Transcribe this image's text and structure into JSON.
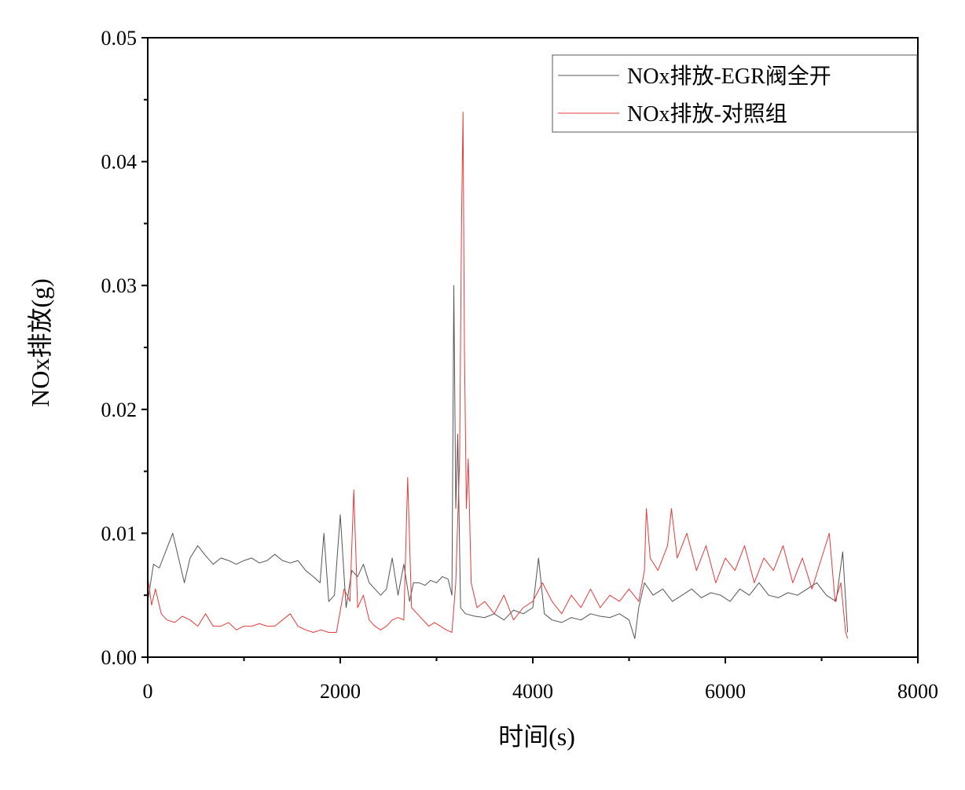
{
  "chart_data": {
    "type": "line",
    "title": "",
    "xlabel": "时间(s)",
    "ylabel": "NOx排放(g)",
    "xlim": [
      0,
      8000
    ],
    "ylim": [
      0,
      0.05
    ],
    "x_ticks": [
      "0",
      "2000",
      "4000",
      "6000",
      "8000"
    ],
    "y_ticks": [
      "0.00",
      "0.01",
      "0.02",
      "0.03",
      "0.04",
      "0.05"
    ],
    "grid": false,
    "legend_position": "top-right",
    "series": [
      {
        "name": "NOx排放-EGR阀全开",
        "color": "#555555",
        "points": [
          [
            0,
            0.0045
          ],
          [
            60,
            0.0075
          ],
          [
            120,
            0.0072
          ],
          [
            200,
            0.0088
          ],
          [
            260,
            0.01
          ],
          [
            320,
            0.008
          ],
          [
            380,
            0.006
          ],
          [
            440,
            0.008
          ],
          [
            520,
            0.009
          ],
          [
            600,
            0.0082
          ],
          [
            680,
            0.0075
          ],
          [
            760,
            0.008
          ],
          [
            840,
            0.0078
          ],
          [
            920,
            0.0075
          ],
          [
            1000,
            0.0078
          ],
          [
            1080,
            0.008
          ],
          [
            1160,
            0.0076
          ],
          [
            1240,
            0.0078
          ],
          [
            1320,
            0.0083
          ],
          [
            1400,
            0.0078
          ],
          [
            1480,
            0.0076
          ],
          [
            1560,
            0.0078
          ],
          [
            1640,
            0.007
          ],
          [
            1720,
            0.0065
          ],
          [
            1790,
            0.006
          ],
          [
            1830,
            0.01
          ],
          [
            1880,
            0.0045
          ],
          [
            1940,
            0.005
          ],
          [
            2000,
            0.0115
          ],
          [
            2060,
            0.004
          ],
          [
            2120,
            0.007
          ],
          [
            2180,
            0.0065
          ],
          [
            2240,
            0.0075
          ],
          [
            2300,
            0.006
          ],
          [
            2360,
            0.0055
          ],
          [
            2420,
            0.005
          ],
          [
            2480,
            0.0055
          ],
          [
            2540,
            0.008
          ],
          [
            2600,
            0.005
          ],
          [
            2660,
            0.0075
          ],
          [
            2720,
            0.0045
          ],
          [
            2760,
            0.006
          ],
          [
            2820,
            0.006
          ],
          [
            2880,
            0.0058
          ],
          [
            2940,
            0.0062
          ],
          [
            3000,
            0.006
          ],
          [
            3060,
            0.0065
          ],
          [
            3120,
            0.0063
          ],
          [
            3160,
            0.005
          ],
          [
            3180,
            0.03
          ],
          [
            3200,
            0.012
          ],
          [
            3220,
            0.018
          ],
          [
            3250,
            0.004
          ],
          [
            3300,
            0.0035
          ],
          [
            3400,
            0.0033
          ],
          [
            3500,
            0.0032
          ],
          [
            3600,
            0.0035
          ],
          [
            3700,
            0.003
          ],
          [
            3800,
            0.0038
          ],
          [
            3900,
            0.0035
          ],
          [
            4000,
            0.004
          ],
          [
            4060,
            0.008
          ],
          [
            4120,
            0.0035
          ],
          [
            4200,
            0.003
          ],
          [
            4300,
            0.0028
          ],
          [
            4400,
            0.0032
          ],
          [
            4500,
            0.003
          ],
          [
            4600,
            0.0035
          ],
          [
            4700,
            0.0033
          ],
          [
            4800,
            0.0032
          ],
          [
            4900,
            0.0035
          ],
          [
            5000,
            0.003
          ],
          [
            5060,
            0.0015
          ],
          [
            5100,
            0.004
          ],
          [
            5160,
            0.006
          ],
          [
            5250,
            0.005
          ],
          [
            5350,
            0.0055
          ],
          [
            5450,
            0.0045
          ],
          [
            5550,
            0.005
          ],
          [
            5650,
            0.0055
          ],
          [
            5750,
            0.0048
          ],
          [
            5850,
            0.0052
          ],
          [
            5950,
            0.005
          ],
          [
            6050,
            0.0045
          ],
          [
            6150,
            0.0055
          ],
          [
            6250,
            0.005
          ],
          [
            6350,
            0.006
          ],
          [
            6450,
            0.005
          ],
          [
            6550,
            0.0048
          ],
          [
            6650,
            0.0052
          ],
          [
            6750,
            0.005
          ],
          [
            6850,
            0.0055
          ],
          [
            6950,
            0.006
          ],
          [
            7050,
            0.005
          ],
          [
            7150,
            0.0045
          ],
          [
            7220,
            0.0085
          ],
          [
            7270,
            0.002
          ]
        ]
      },
      {
        "name": "NOx排放-对照组",
        "color": "#e8393b",
        "points": [
          [
            0,
            0.0065
          ],
          [
            40,
            0.0042
          ],
          [
            80,
            0.0055
          ],
          [
            140,
            0.0035
          ],
          [
            200,
            0.003
          ],
          [
            280,
            0.0028
          ],
          [
            360,
            0.0033
          ],
          [
            440,
            0.003
          ],
          [
            520,
            0.0025
          ],
          [
            600,
            0.0035
          ],
          [
            680,
            0.0025
          ],
          [
            760,
            0.0025
          ],
          [
            840,
            0.0028
          ],
          [
            920,
            0.0022
          ],
          [
            1000,
            0.0025
          ],
          [
            1080,
            0.0025
          ],
          [
            1160,
            0.0027
          ],
          [
            1240,
            0.0025
          ],
          [
            1320,
            0.0025
          ],
          [
            1400,
            0.003
          ],
          [
            1480,
            0.0035
          ],
          [
            1560,
            0.0025
          ],
          [
            1640,
            0.0022
          ],
          [
            1720,
            0.002
          ],
          [
            1800,
            0.0022
          ],
          [
            1880,
            0.002
          ],
          [
            1960,
            0.002
          ],
          [
            2040,
            0.0055
          ],
          [
            2100,
            0.0045
          ],
          [
            2140,
            0.0135
          ],
          [
            2180,
            0.004
          ],
          [
            2240,
            0.005
          ],
          [
            2300,
            0.003
          ],
          [
            2360,
            0.0025
          ],
          [
            2420,
            0.0022
          ],
          [
            2480,
            0.0025
          ],
          [
            2540,
            0.003
          ],
          [
            2600,
            0.0032
          ],
          [
            2660,
            0.003
          ],
          [
            2700,
            0.0145
          ],
          [
            2740,
            0.004
          ],
          [
            2800,
            0.0035
          ],
          [
            2860,
            0.003
          ],
          [
            2920,
            0.0025
          ],
          [
            2980,
            0.0028
          ],
          [
            3040,
            0.0025
          ],
          [
            3100,
            0.0022
          ],
          [
            3160,
            0.002
          ],
          [
            3200,
            0.006
          ],
          [
            3240,
            0.016
          ],
          [
            3260,
            0.035
          ],
          [
            3275,
            0.044
          ],
          [
            3290,
            0.025
          ],
          [
            3310,
            0.012
          ],
          [
            3330,
            0.016
          ],
          [
            3360,
            0.006
          ],
          [
            3420,
            0.004
          ],
          [
            3500,
            0.0045
          ],
          [
            3600,
            0.0035
          ],
          [
            3700,
            0.005
          ],
          [
            3800,
            0.003
          ],
          [
            3900,
            0.004
          ],
          [
            4000,
            0.0045
          ],
          [
            4100,
            0.006
          ],
          [
            4200,
            0.0045
          ],
          [
            4300,
            0.0035
          ],
          [
            4400,
            0.005
          ],
          [
            4500,
            0.004
          ],
          [
            4600,
            0.0055
          ],
          [
            4700,
            0.004
          ],
          [
            4800,
            0.005
          ],
          [
            4900,
            0.0045
          ],
          [
            5000,
            0.0055
          ],
          [
            5100,
            0.0045
          ],
          [
            5160,
            0.007
          ],
          [
            5180,
            0.012
          ],
          [
            5220,
            0.008
          ],
          [
            5300,
            0.007
          ],
          [
            5400,
            0.009
          ],
          [
            5440,
            0.012
          ],
          [
            5500,
            0.008
          ],
          [
            5600,
            0.01
          ],
          [
            5700,
            0.007
          ],
          [
            5800,
            0.009
          ],
          [
            5900,
            0.006
          ],
          [
            6000,
            0.008
          ],
          [
            6100,
            0.007
          ],
          [
            6200,
            0.009
          ],
          [
            6300,
            0.006
          ],
          [
            6400,
            0.008
          ],
          [
            6500,
            0.007
          ],
          [
            6600,
            0.009
          ],
          [
            6700,
            0.006
          ],
          [
            6800,
            0.008
          ],
          [
            6900,
            0.0055
          ],
          [
            7000,
            0.008
          ],
          [
            7080,
            0.01
          ],
          [
            7140,
            0.0045
          ],
          [
            7200,
            0.006
          ],
          [
            7250,
            0.002
          ],
          [
            7270,
            0.0015
          ]
        ]
      }
    ]
  }
}
